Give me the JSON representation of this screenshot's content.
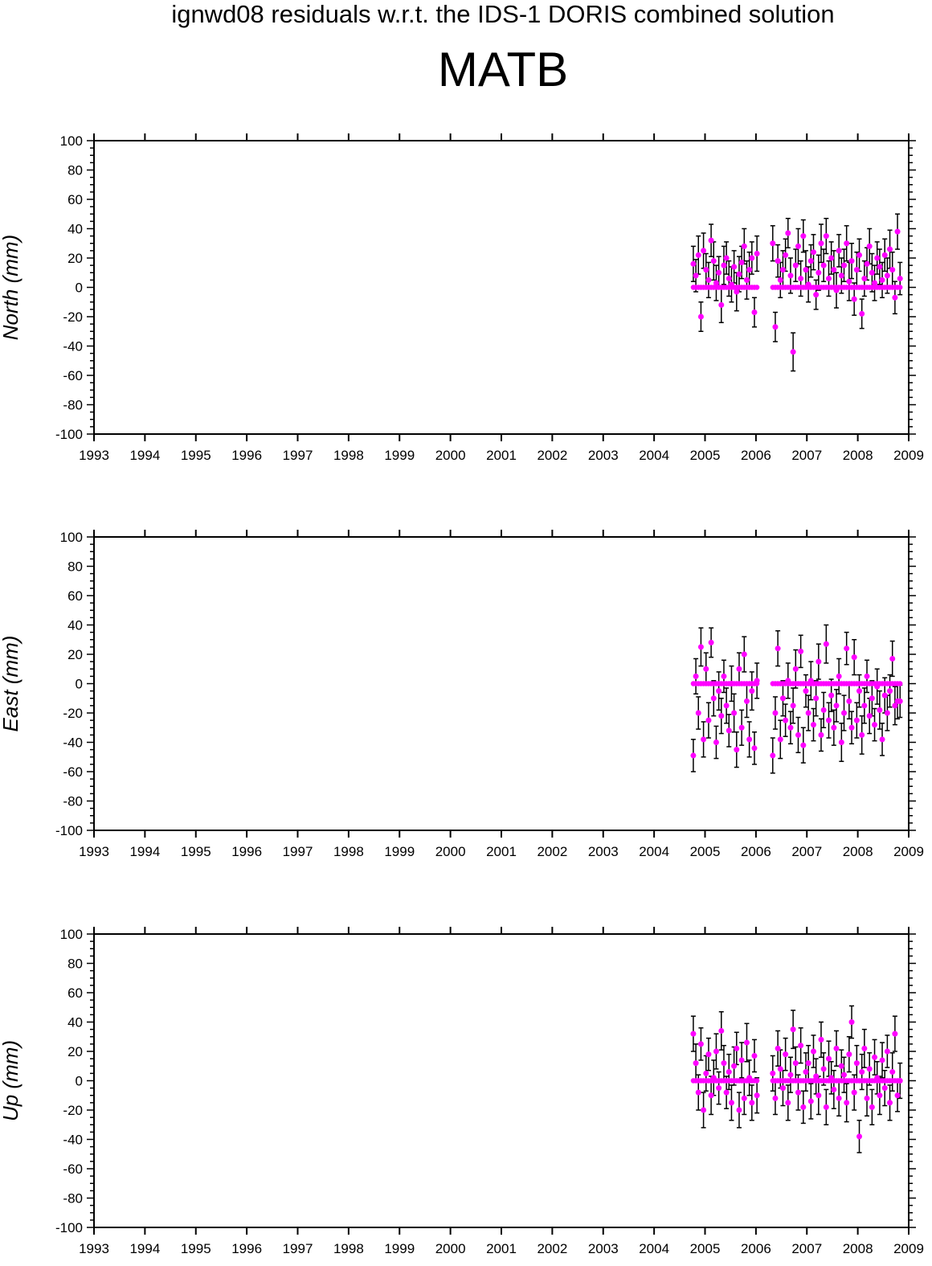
{
  "figure": {
    "title": "ignwd08 residuals w.r.t. the IDS-1 DORIS combined solution",
    "station": "MATB"
  },
  "colors": {
    "points": "#ff00ff",
    "error_bars": "#000000",
    "axes": "#000000"
  },
  "chart_data": [
    {
      "type": "scatter",
      "ylabel": "North (mm)",
      "xlim": [
        1993,
        2009
      ],
      "ylim": [
        -100,
        100
      ],
      "x_ticks": [
        "1993",
        "1994",
        "1995",
        "1996",
        "1997",
        "1998",
        "1999",
        "2000",
        "2001",
        "2002",
        "2003",
        "2004",
        "2005",
        "2006",
        "2007",
        "2008",
        "2009"
      ],
      "y_ticks": [
        "100",
        "80",
        "60",
        "40",
        "20",
        "0",
        "-20",
        "-40",
        "-60",
        "-80",
        "-100"
      ],
      "error_bars": true,
      "series": [
        {
          "x": [
            2004.77,
            2004.82,
            2004.87,
            2004.92,
            2004.97,
            2005.02,
            2005.07,
            2005.12,
            2005.17,
            2005.22,
            2005.27,
            2005.32,
            2005.37,
            2005.42,
            2005.47,
            2005.52,
            2005.57,
            2005.62,
            2005.67,
            2005.72,
            2005.77,
            2005.82,
            2005.87,
            2005.92,
            2005.97,
            2006.02,
            2006.33,
            2006.38,
            2006.43,
            2006.48,
            2006.53,
            2006.58,
            2006.63,
            2006.68,
            2006.73,
            2006.78,
            2006.83,
            2006.88,
            2006.93,
            2006.98,
            2007.03,
            2007.08,
            2007.13,
            2007.18,
            2007.23,
            2007.28,
            2007.33,
            2007.38,
            2007.43,
            2007.48,
            2007.53,
            2007.58,
            2007.63,
            2007.68,
            2007.73,
            2007.78,
            2007.83,
            2007.88,
            2007.93,
            2007.98,
            2008.03,
            2008.08,
            2008.13,
            2008.18,
            2008.23,
            2008.28,
            2008.33,
            2008.38,
            2008.43,
            2008.48,
            2008.53,
            2008.58,
            2008.63,
            2008.68,
            2008.73,
            2008.78,
            2008.83
          ],
          "y": [
            16,
            8,
            22,
            -20,
            25,
            12,
            5,
            32,
            18,
            3,
            10,
            -12,
            15,
            20,
            6,
            2,
            14,
            -3,
            9,
            17,
            28,
            5,
            12,
            20,
            -17,
            23,
            30,
            -27,
            18,
            5,
            12,
            22,
            37,
            8,
            -44,
            15,
            28,
            6,
            35,
            12,
            2,
            18,
            24,
            -5,
            10,
            30,
            15,
            35,
            6,
            20,
            12,
            -2,
            25,
            8,
            15,
            30,
            4,
            18,
            -8,
            12,
            22,
            -18,
            6,
            16,
            28,
            10,
            3,
            20,
            14,
            5,
            22,
            8,
            26,
            12,
            -7,
            38,
            6
          ],
          "err": [
            12,
            11,
            13,
            10,
            12,
            11,
            12,
            11,
            13,
            12,
            11,
            12,
            13,
            11,
            12,
            12,
            11,
            13,
            12,
            11,
            12,
            13,
            12,
            11,
            10,
            12,
            12,
            10,
            11,
            12,
            13,
            11,
            10,
            12,
            13,
            11,
            12,
            12,
            11,
            13,
            12,
            11,
            12,
            10,
            12,
            13,
            11,
            12,
            12,
            11,
            13,
            12,
            11,
            12,
            11,
            12,
            13,
            12,
            11,
            12,
            11,
            10,
            12,
            11,
            12,
            13,
            12,
            11,
            12,
            12,
            11,
            12,
            13,
            12,
            11,
            12,
            11
          ]
        }
      ]
    },
    {
      "type": "scatter",
      "ylabel": "East (mm)",
      "xlim": [
        1993,
        2009
      ],
      "ylim": [
        -100,
        100
      ],
      "x_ticks": [
        "1993",
        "1994",
        "1995",
        "1996",
        "1997",
        "1998",
        "1999",
        "2000",
        "2001",
        "2002",
        "2003",
        "2004",
        "2005",
        "2006",
        "2007",
        "2008",
        "2009"
      ],
      "y_ticks": [
        "100",
        "80",
        "60",
        "40",
        "20",
        "0",
        "-20",
        "-40",
        "-60",
        "-80",
        "-100"
      ],
      "error_bars": true,
      "series": [
        {
          "x": [
            2004.77,
            2004.82,
            2004.87,
            2004.92,
            2004.97,
            2005.02,
            2005.07,
            2005.12,
            2005.17,
            2005.22,
            2005.27,
            2005.32,
            2005.37,
            2005.42,
            2005.47,
            2005.52,
            2005.57,
            2005.62,
            2005.67,
            2005.72,
            2005.77,
            2005.82,
            2005.87,
            2005.92,
            2005.97,
            2006.02,
            2006.33,
            2006.38,
            2006.43,
            2006.48,
            2006.53,
            2006.58,
            2006.63,
            2006.68,
            2006.73,
            2006.78,
            2006.83,
            2006.88,
            2006.93,
            2006.98,
            2007.03,
            2007.08,
            2007.13,
            2007.18,
            2007.23,
            2007.28,
            2007.33,
            2007.38,
            2007.43,
            2007.48,
            2007.53,
            2007.58,
            2007.63,
            2007.68,
            2007.73,
            2007.78,
            2007.83,
            2007.88,
            2007.93,
            2007.98,
            2008.03,
            2008.08,
            2008.13,
            2008.18,
            2008.23,
            2008.28,
            2008.33,
            2008.38,
            2008.43,
            2008.48,
            2008.53,
            2008.58,
            2008.63,
            2008.68,
            2008.73,
            2008.78,
            2008.83
          ],
          "y": [
            -49,
            5,
            -20,
            25,
            -38,
            10,
            -25,
            28,
            -10,
            -40,
            -5,
            -22,
            5,
            -15,
            -32,
            0,
            -20,
            -45,
            10,
            -30,
            20,
            -12,
            -38,
            -5,
            -44,
            2,
            -49,
            -20,
            24,
            -38,
            -10,
            -25,
            2,
            -30,
            -15,
            10,
            -35,
            22,
            -42,
            -5,
            -20,
            2,
            -28,
            -10,
            15,
            -35,
            -18,
            27,
            -25,
            -8,
            -30,
            -15,
            5,
            -40,
            -20,
            24,
            -12,
            -30,
            18,
            -25,
            -5,
            -35,
            -15,
            5,
            -22,
            -10,
            -28,
            -2,
            -18,
            -38,
            -8,
            -20,
            -5,
            17,
            -15,
            -12,
            -12
          ],
          "err": [
            11,
            12,
            11,
            13,
            12,
            11,
            12,
            10,
            12,
            11,
            13,
            12,
            11,
            12,
            11,
            12,
            13,
            12,
            11,
            12,
            12,
            11,
            12,
            13,
            11,
            12,
            12,
            11,
            12,
            13,
            12,
            11,
            12,
            11,
            12,
            13,
            12,
            11,
            12,
            11,
            12,
            13,
            11,
            12,
            12,
            11,
            12,
            13,
            12,
            11,
            12,
            11,
            12,
            13,
            12,
            11,
            12,
            11,
            12,
            12,
            11,
            13,
            12,
            11,
            12,
            12,
            11,
            12,
            13,
            11,
            12,
            12,
            11,
            12,
            13,
            12,
            11
          ]
        }
      ]
    },
    {
      "type": "scatter",
      "ylabel": "Up (mm)",
      "xlim": [
        1993,
        2009
      ],
      "ylim": [
        -100,
        100
      ],
      "x_ticks": [
        "1993",
        "1994",
        "1995",
        "1996",
        "1997",
        "1998",
        "1999",
        "2000",
        "2001",
        "2002",
        "2003",
        "2004",
        "2005",
        "2006",
        "2007",
        "2008",
        "2009"
      ],
      "y_ticks": [
        "100",
        "80",
        "60",
        "40",
        "20",
        "0",
        "-20",
        "-40",
        "-60",
        "-80",
        "-100"
      ],
      "error_bars": true,
      "series": [
        {
          "x": [
            2004.77,
            2004.82,
            2004.87,
            2004.92,
            2004.97,
            2005.02,
            2005.07,
            2005.12,
            2005.17,
            2005.22,
            2005.27,
            2005.32,
            2005.37,
            2005.42,
            2005.47,
            2005.52,
            2005.57,
            2005.62,
            2005.67,
            2005.72,
            2005.77,
            2005.82,
            2005.87,
            2005.92,
            2005.97,
            2006.02,
            2006.33,
            2006.38,
            2006.43,
            2006.48,
            2006.53,
            2006.58,
            2006.63,
            2006.68,
            2006.73,
            2006.78,
            2006.83,
            2006.88,
            2006.93,
            2006.98,
            2007.03,
            2007.08,
            2007.13,
            2007.18,
            2007.23,
            2007.28,
            2007.33,
            2007.38,
            2007.43,
            2007.48,
            2007.53,
            2007.58,
            2007.63,
            2007.68,
            2007.73,
            2007.78,
            2007.83,
            2007.88,
            2007.93,
            2007.98,
            2008.03,
            2008.08,
            2008.13,
            2008.18,
            2008.23,
            2008.28,
            2008.33,
            2008.38,
            2008.43,
            2008.48,
            2008.53,
            2008.58,
            2008.63,
            2008.68,
            2008.73,
            2008.78,
            2008.83
          ],
          "y": [
            32,
            12,
            -8,
            25,
            -20,
            5,
            18,
            -10,
            2,
            20,
            -5,
            34,
            12,
            -8,
            6,
            -15,
            10,
            22,
            -20,
            14,
            -12,
            26,
            2,
            -15,
            17,
            -10,
            5,
            -12,
            22,
            8,
            -5,
            18,
            -15,
            4,
            35,
            12,
            -8,
            24,
            -18,
            6,
            12,
            -14,
            20,
            3,
            -10,
            28,
            8,
            -18,
            15,
            2,
            -6,
            22,
            -12,
            10,
            4,
            -15,
            18,
            40,
            -8,
            12,
            -38,
            6,
            22,
            -12,
            8,
            -18,
            16,
            2,
            -10,
            14,
            -5,
            20,
            -15,
            6,
            32,
            -10,
            0
          ],
          "err": [
            12,
            13,
            12,
            11,
            12,
            12,
            11,
            13,
            12,
            12,
            11,
            13,
            12,
            11,
            12,
            12,
            13,
            11,
            12,
            12,
            11,
            13,
            12,
            12,
            11,
            12,
            12,
            11,
            12,
            13,
            12,
            11,
            12,
            12,
            13,
            11,
            12,
            12,
            11,
            13,
            12,
            12,
            11,
            12,
            13,
            12,
            11,
            12,
            12,
            11,
            13,
            12,
            12,
            11,
            12,
            13,
            12,
            11,
            12,
            12,
            11,
            12,
            13,
            12,
            11,
            12,
            12,
            11,
            13,
            12,
            12,
            11,
            12,
            13,
            12,
            11,
            12
          ]
        }
      ]
    }
  ]
}
